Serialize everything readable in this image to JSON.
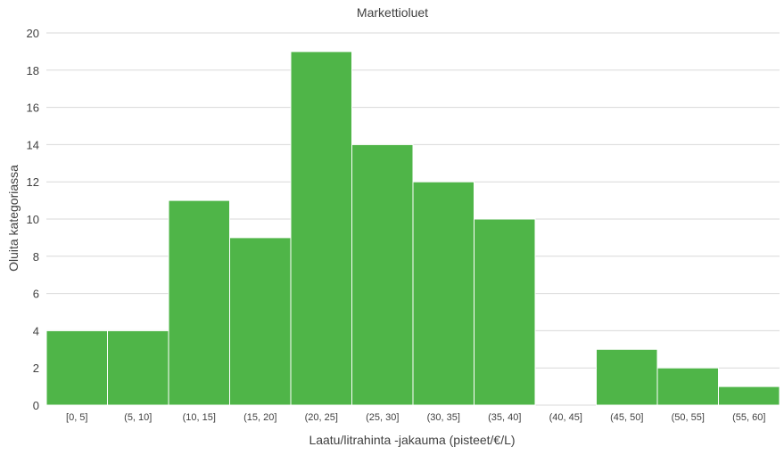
{
  "chart_data": {
    "type": "bar",
    "title": "Markettioluet",
    "xlabel": "Laatu/litrahinta -jakauma (pisteet/€/L)",
    "ylabel": "Oluita kategoriassa",
    "categories": [
      "[0, 5]",
      "(5, 10]",
      "(10, 15]",
      "(15, 20]",
      "(20, 25]",
      "(25, 30]",
      "(30, 35]",
      "(35, 40]",
      "(40, 45]",
      "(45, 50]",
      "(50, 55]",
      "(55, 60]"
    ],
    "values": [
      4,
      4,
      11,
      9,
      19,
      14,
      12,
      10,
      0,
      3,
      2,
      1
    ],
    "ylim": [
      0,
      20
    ],
    "yticks": [
      "0",
      "2",
      "4",
      "6",
      "8",
      "10",
      "12",
      "14",
      "16",
      "18",
      "20"
    ],
    "grid": true,
    "bar_color": "#4fb548",
    "grid_color": "#d9d9d9"
  }
}
